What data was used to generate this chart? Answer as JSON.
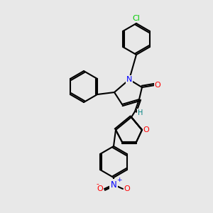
{
  "bg_color": "#e8e8e8",
  "bond_color": "#000000",
  "bond_lw": 1.5,
  "atom_colors": {
    "N": "#0000ff",
    "O": "#ff0000",
    "Cl": "#00cc00",
    "H_label": "#008080"
  },
  "font_size": 7.5
}
